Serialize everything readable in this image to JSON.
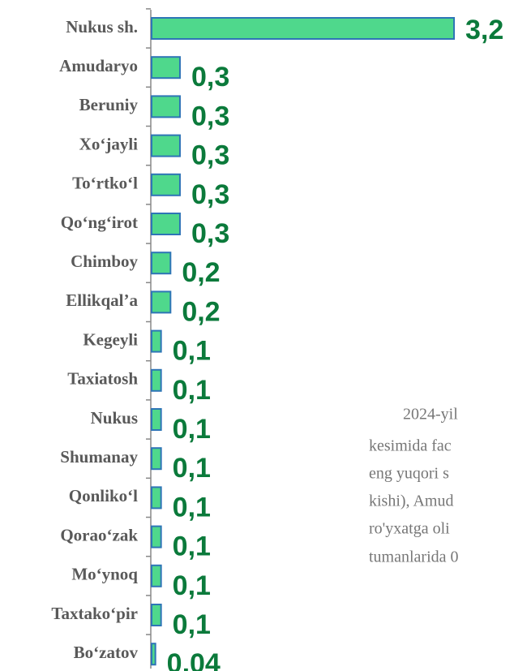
{
  "chart_data": {
    "type": "barh",
    "categories": [
      "Nukus sh.",
      "Amudaryo",
      "Beruniy",
      "Xo‘jayli",
      "To‘rtko‘l",
      "Qo‘ng‘irot",
      "Chimboy",
      "Ellikqal’a",
      "Kegeyli",
      "Taxiatosh",
      "Nukus",
      "Shumanay",
      "Qonliko‘l",
      "Qorao‘zak",
      "Mo‘ynoq",
      "Taxtako‘pir",
      "Bo‘zatov"
    ],
    "values": [
      3.2,
      0.3,
      0.3,
      0.3,
      0.3,
      0.3,
      0.2,
      0.2,
      0.1,
      0.1,
      0.1,
      0.1,
      0.1,
      0.1,
      0.1,
      0.1,
      0.04
    ],
    "value_labels": [
      "3,2",
      "0,3",
      "0,3",
      "0,3",
      "0,3",
      "0,3",
      "0,2",
      "0,2",
      "0,1",
      "0,1",
      "0,1",
      "0,1",
      "0,1",
      "0,1",
      "0,1",
      "0,1",
      "0,04"
    ],
    "color": "#4fd88c",
    "xlim": [
      0,
      3.5
    ],
    "annotations": [
      "2024-yil",
      "kesimida fac",
      "eng yuqori s",
      "kishi), Amud",
      "ro'yxatga oli",
      "tumanlarida 0"
    ]
  }
}
